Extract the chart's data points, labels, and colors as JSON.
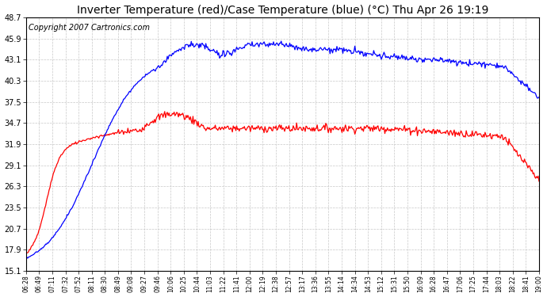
{
  "title": "Inverter Temperature (red)/Case Temperature (blue) (°C) Thu Apr 26 19:19",
  "copyright": "Copyright 2007 Cartronics.com",
  "yticks": [
    15.1,
    17.9,
    20.7,
    23.5,
    26.3,
    29.1,
    31.9,
    34.7,
    37.5,
    40.3,
    43.1,
    45.9,
    48.7
  ],
  "xtick_labels": [
    "06:28",
    "06:49",
    "07:11",
    "07:32",
    "07:52",
    "08:11",
    "08:30",
    "08:49",
    "09:08",
    "09:27",
    "09:46",
    "10:06",
    "10:25",
    "10:44",
    "11:03",
    "11:22",
    "11:41",
    "12:00",
    "12:19",
    "12:38",
    "12:57",
    "13:17",
    "13:36",
    "13:55",
    "14:14",
    "14:34",
    "14:53",
    "15:12",
    "15:31",
    "15:50",
    "16:09",
    "16:28",
    "16:47",
    "17:06",
    "17:25",
    "17:44",
    "18:03",
    "18:22",
    "18:41",
    "19:00"
  ],
  "ymin": 15.1,
  "ymax": 48.7,
  "red_color": "#ff0000",
  "blue_color": "#0000ff",
  "bg_color": "#ffffff",
  "grid_color": "#c8c8c8",
  "title_fontsize": 10,
  "copyright_fontsize": 7
}
